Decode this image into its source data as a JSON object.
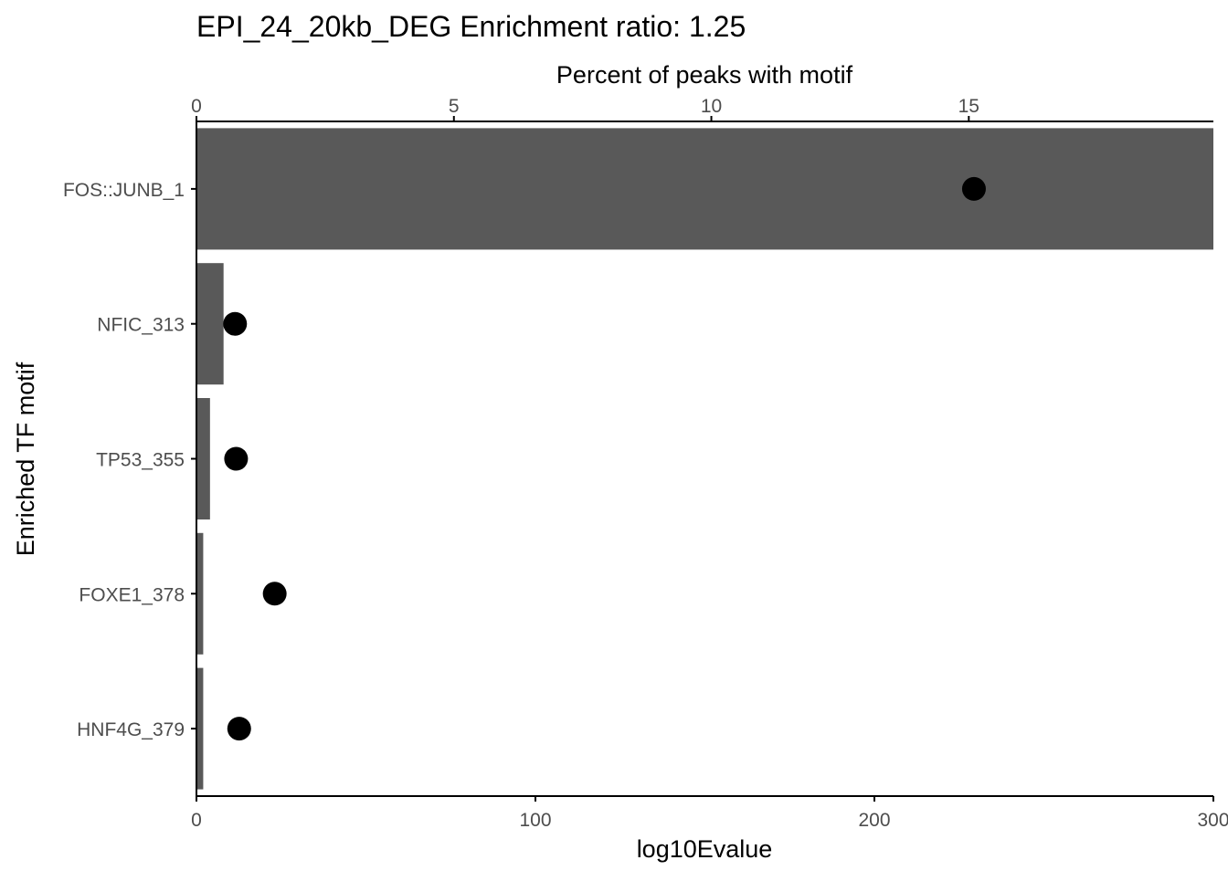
{
  "chart_data": {
    "type": "bar",
    "title": "EPI_24_20kb_DEG Enrichment ratio: 1.25",
    "xlabel": "log10Evalue",
    "ylabel": "Enriched TF motif",
    "secondary_xlabel": "Percent of peaks with motif",
    "orientation": "horizontal",
    "categories": [
      "FOS::JUNB_1",
      "NFIC_313",
      "TP53_355",
      "FOXE1_378",
      "HNF4G_379"
    ],
    "series": [
      {
        "mark": "bar",
        "axis": "bottom",
        "values": [
          300,
          8,
          4,
          2,
          2
        ]
      },
      {
        "mark": "point",
        "axis": "top",
        "values": [
          15.1,
          0.75,
          0.77,
          1.52,
          0.83
        ]
      }
    ],
    "xlim": [
      0,
      300
    ],
    "xticks": [
      "0",
      "100",
      "200",
      "300"
    ],
    "secondary_xlim": [
      0,
      19.75
    ],
    "secondary_xticks": [
      "0",
      "5",
      "10",
      "15"
    ],
    "colors": {
      "bar": "#595959",
      "point": "#000000",
      "axis": "#000000",
      "tick_label": "#4d4d4d"
    },
    "grid": false,
    "legend": "none"
  }
}
